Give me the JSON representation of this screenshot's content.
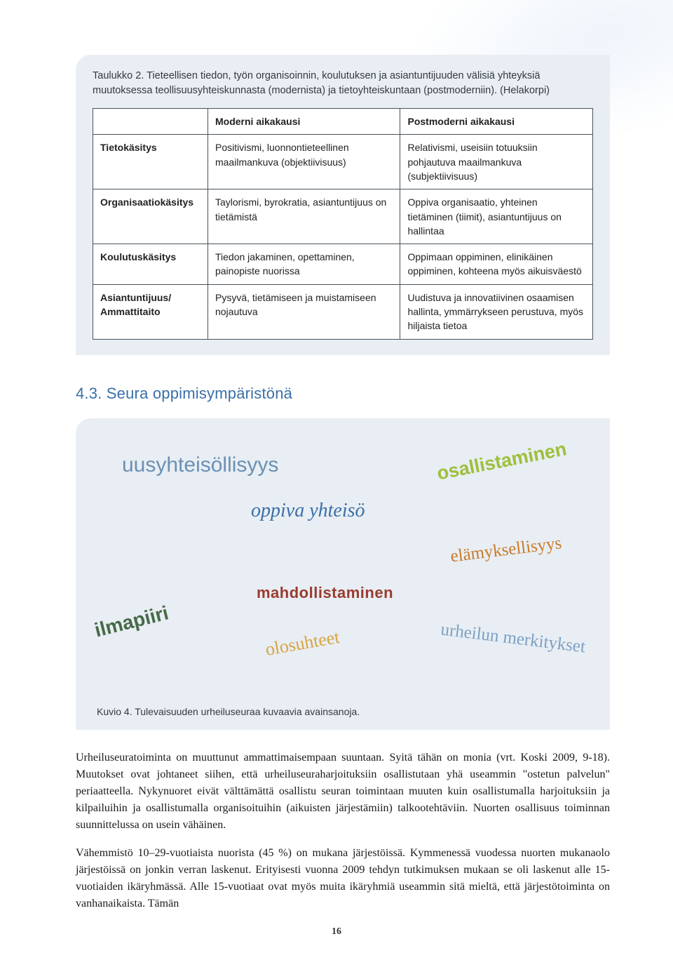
{
  "table": {
    "caption": "Taulukko 2. Tieteellisen tiedon, työn organisoinnin, koulutuksen ja asiantuntijuuden välisiä yhteyksiä muutoksessa teollisuusyhteiskunnasta (modernista) ja tietoyhteiskuntaan (postmoderniin). (Helakorpi)",
    "col1": "Moderni aikakausi",
    "col2": "Postmoderni aikakausi",
    "rows": [
      {
        "label": "Tietokäsitys",
        "c1": "Positivismi, luonnontieteellinen maailmankuva (objektiivisuus)",
        "c2": "Relativismi, useisiin totuuksiin pohjautuva maailmankuva (subjektiivisuus)"
      },
      {
        "label": "Organisaatiokäsitys",
        "c1": "Taylorismi, byrokratia, asiantuntijuus on tietämistä",
        "c2": "Oppiva organisaatio, yhteinen tietäminen (tiimit), asiantuntijuus on hallintaa"
      },
      {
        "label": "Koulutuskäsitys",
        "c1": "Tiedon jakaminen, opettaminen, painopiste nuorissa",
        "c2": "Oppimaan oppiminen, elinikäinen oppiminen, kohteena myös aikuisväestö"
      },
      {
        "label": "Asiantuntijuus/ Ammattitaito",
        "c1": "Pysyvä, tietämiseen ja muistamiseen nojautuva",
        "c2": "Uudistuva ja innovatiivinen osaamisen hallinta, ymmärrykseen perustuva, myös hiljaista tietoa"
      }
    ]
  },
  "section_heading": "4.3. Seura oppimisympäristönä",
  "wordcloud": {
    "words": {
      "uusy": "uusyhteisöllisyys",
      "osal": "osallistaminen",
      "oppiva": "oppiva yhteisö",
      "elamyk": "elämyksellisyys",
      "mahd": "mahdollistaminen",
      "ilma": "ilmapiiri",
      "olo": "olosuhteet",
      "urh": "urheilun merkitykset"
    },
    "caption": "Kuvio 4. Tulevaisuuden urheiluseuraa kuvaavia avainsanoja."
  },
  "paragraphs": [
    "Urheiluseuratoiminta on muuttunut ammattimaisempaan suuntaan. Syitä tähän on monia (vrt. Koski 2009, 9-18). Muutokset ovat johtaneet siihen, että urheiluseuraharjoituksiin osallistutaan yhä useammin \"ostetun palvelun\" periaatteella. Nykynuoret eivät välttämättä osallistu seuran toimintaan muuten kuin osallistumalla harjoituksiin ja kilpailuihin ja osallistumalla organisoituihin (aikuisten järjestämiin) talkootehtäviin. Nuorten osallisuus toiminnan suunnittelussa on usein vähäinen.",
    "Vähemmistö 10–29-vuotiaista nuorista (45 %) on mukana järjestöissä. Kymmenessä vuodessa nuorten mukanaolo järjestöissä on jonkin verran laskenut. Erityisesti vuonna 2009 tehdyn tutkimuksen mukaan se oli laskenut alle 15-vuotiaiden ikäryhmässä. Alle 15-vuotiaat ovat myös muita ikäryhmiä useammin sitä mieltä, että järjestötoiminta on vanhanaikaista. Tämän"
  ],
  "page_number": "16",
  "colors": {
    "box_bg": "#e8eef3",
    "heading": "#3a6fa8",
    "border": "#47525a"
  }
}
